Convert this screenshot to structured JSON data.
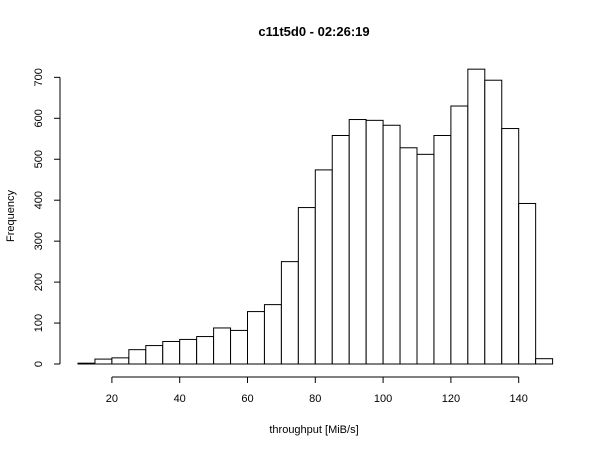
{
  "chart_data": {
    "type": "bar",
    "title": "c11t5d0 - 02:26:19",
    "xlabel": "throughput [MiB/s]",
    "ylabel": "Frequency",
    "bin_width": 5,
    "x_bins": [
      [
        10,
        15
      ],
      [
        15,
        20
      ],
      [
        20,
        25
      ],
      [
        25,
        30
      ],
      [
        30,
        35
      ],
      [
        35,
        40
      ],
      [
        40,
        45
      ],
      [
        45,
        50
      ],
      [
        50,
        55
      ],
      [
        55,
        60
      ],
      [
        60,
        65
      ],
      [
        65,
        70
      ],
      [
        70,
        75
      ],
      [
        75,
        80
      ],
      [
        80,
        85
      ],
      [
        85,
        90
      ],
      [
        90,
        95
      ],
      [
        95,
        100
      ],
      [
        100,
        105
      ],
      [
        105,
        110
      ],
      [
        110,
        115
      ],
      [
        115,
        120
      ],
      [
        120,
        125
      ],
      [
        125,
        130
      ],
      [
        130,
        135
      ],
      [
        135,
        140
      ],
      [
        140,
        145
      ],
      [
        145,
        150
      ]
    ],
    "values": [
      2,
      12,
      15,
      35,
      45,
      55,
      60,
      67,
      88,
      82,
      128,
      145,
      250,
      382,
      474,
      558,
      597,
      595,
      583,
      528,
      512,
      558,
      630,
      720,
      693,
      575,
      392,
      13
    ],
    "xlim": [
      10,
      150
    ],
    "ylim": [
      0,
      720
    ],
    "x_ticks": [
      20,
      40,
      60,
      80,
      100,
      120,
      140
    ],
    "y_ticks": [
      0,
      100,
      200,
      300,
      400,
      500,
      600,
      700
    ],
    "grid": false,
    "legend": "none",
    "colors": {
      "bar_fill": "#ffffff",
      "bar_stroke": "#000000"
    }
  }
}
